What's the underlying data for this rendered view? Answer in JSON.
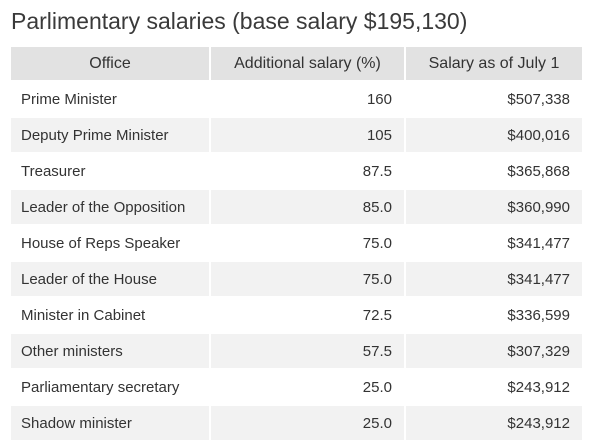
{
  "title": "Parlimentary salaries (base salary $195,130)",
  "columns": [
    "Office",
    "Additional salary (%)",
    "Salary as of July 1"
  ],
  "rows": [
    {
      "office": "Prime Minister",
      "additional": "160",
      "salary": "$507,338"
    },
    {
      "office": "Deputy Prime Minister",
      "additional": "105",
      "salary": "$400,016"
    },
    {
      "office": "Treasurer",
      "additional": "87.5",
      "salary": "$365,868"
    },
    {
      "office": "Leader of the Opposition",
      "additional": "85.0",
      "salary": "$360,990"
    },
    {
      "office": "House of Reps Speaker",
      "additional": "75.0",
      "salary": "$341,477"
    },
    {
      "office": "Leader of the House",
      "additional": "75.0",
      "salary": "$341,477"
    },
    {
      "office": "Minister in Cabinet",
      "additional": "72.5",
      "salary": "$336,599"
    },
    {
      "office": "Other ministers",
      "additional": "57.5",
      "salary": "$307,329"
    },
    {
      "office": "Parliamentary secretary",
      "additional": "25.0",
      "salary": "$243,912"
    },
    {
      "office": "Shadow minister",
      "additional": "25.0",
      "salary": "$243,912"
    }
  ],
  "colors": {
    "header_bg": "#e2e2e2",
    "row_alt_bg": "#f2f2f2",
    "text": "#333333"
  }
}
